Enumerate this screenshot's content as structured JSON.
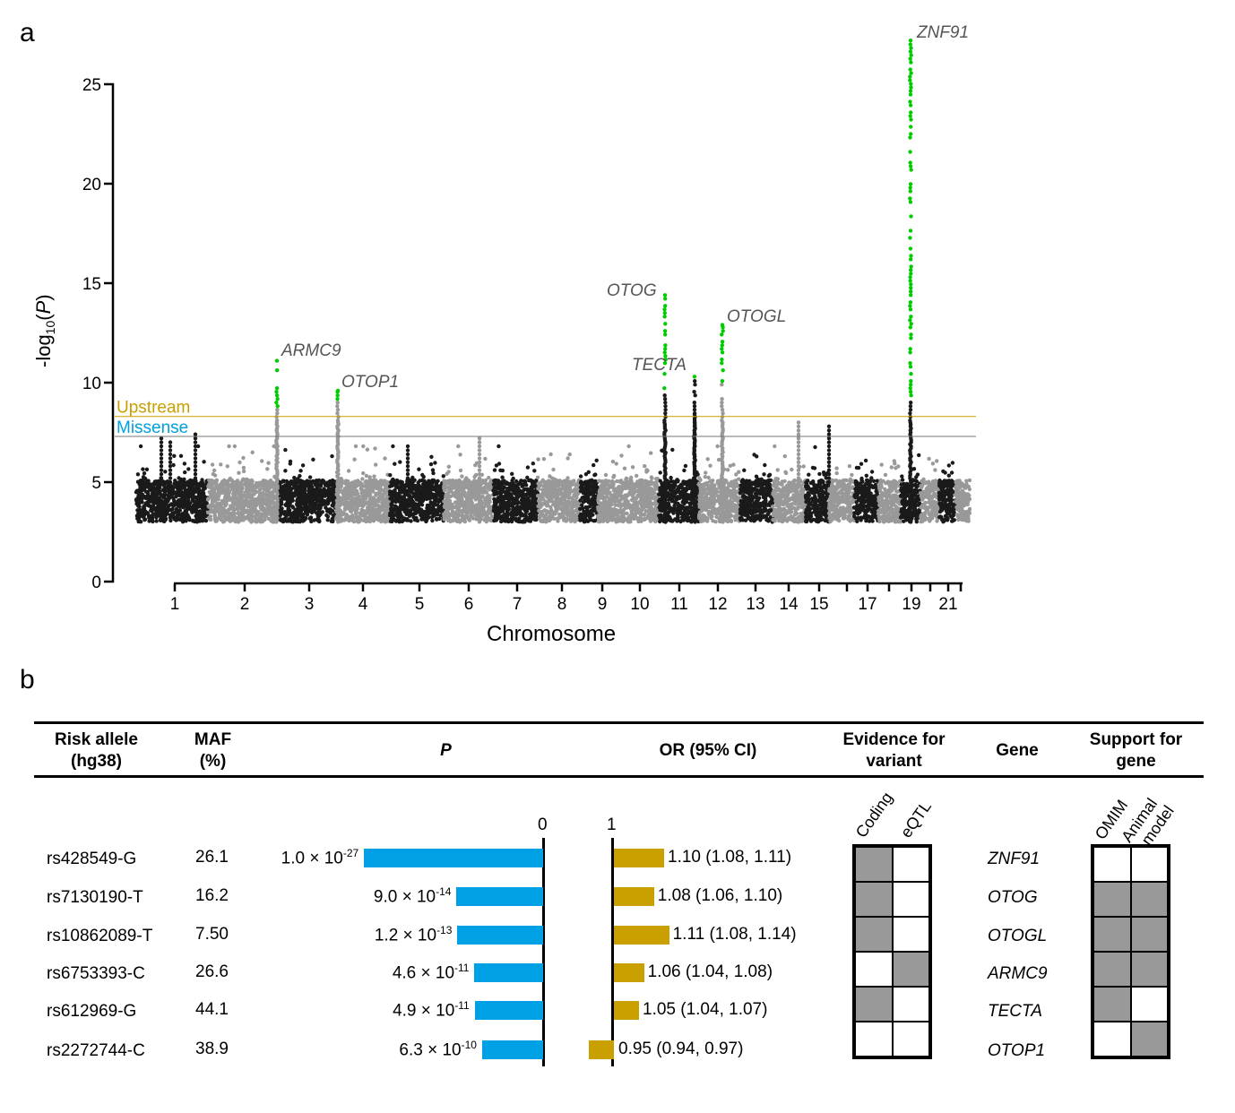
{
  "panel_a": {
    "label": "a"
  },
  "panel_b": {
    "label": "b"
  },
  "chart_data": {
    "type": "scatter",
    "subtype": "manhattan",
    "xlabel": "Chromosome",
    "ylabel": "-log10(P)",
    "ylabel_parts": {
      "pre": "-log",
      "sub": "10",
      "post": "(",
      "italic": "P",
      "close": ")"
    },
    "ylim": [
      0,
      25
    ],
    "yticks": [
      "0",
      "5",
      "10",
      "15",
      "20",
      "25"
    ],
    "xticks": [
      "1",
      "2",
      "3",
      "4",
      "5",
      "6",
      "7",
      "8",
      "9",
      "10",
      "11",
      "12",
      "13",
      "14",
      "15",
      "17",
      "19",
      "21"
    ],
    "colors": {
      "odd": "#1a1a1a",
      "even": "#999999",
      "significant": "#00cc00"
    },
    "thresholds": [
      {
        "name": "Upstream",
        "value": 8.3,
        "color": "#c9a000"
      },
      {
        "name": "Missense",
        "value": 7.3,
        "color": "#00a0e0"
      }
    ],
    "peaks": [
      {
        "gene": "ARMC9",
        "chromosome": 2,
        "max": 11.1
      },
      {
        "gene": "OTOP1",
        "chromosome": 4,
        "max": 9.6
      },
      {
        "gene": "OTOG",
        "chromosome": 11,
        "max": 14.4
      },
      {
        "gene": "TECTA",
        "chromosome": 11,
        "max": 10.3
      },
      {
        "gene": "OTOGL",
        "chromosome": 12,
        "max": 12.9
      },
      {
        "gene": "ZNF91",
        "chromosome": 19,
        "max": 27.2
      }
    ]
  },
  "table": {
    "headers": {
      "allele": "Risk allele",
      "allele2": "(hg38)",
      "maf": "MAF",
      "maf2": "(%)",
      "p": "P",
      "or": "OR (95% CI)",
      "ev": "Evidence for",
      "ev2": "variant",
      "gene": "Gene",
      "sup": "Support for",
      "sup2": "gene"
    },
    "axis": {
      "p_zero": "0",
      "or_one": "1"
    },
    "evidence_cols": [
      "Coding",
      "eQTL"
    ],
    "support_cols": [
      "OMIM",
      "Animal",
      "model"
    ],
    "rows": [
      {
        "allele": "rs428549-G",
        "maf": "26.1",
        "p_mant": "1.0 × 10",
        "p_exp": "-27",
        "neglogp": 27,
        "or": 1.1,
        "or_text": "1.10 (1.08, 1.11)",
        "gene": "ZNF91",
        "coding": true,
        "eqtl": false,
        "omim": false,
        "animal": false
      },
      {
        "allele": "rs7130190-T",
        "maf": "16.2",
        "p_mant": "9.0 × 10",
        "p_exp": "-14",
        "neglogp": 13.05,
        "or": 1.08,
        "or_text": "1.08 (1.06, 1.10)",
        "gene": "OTOG",
        "coding": true,
        "eqtl": false,
        "omim": true,
        "animal": true
      },
      {
        "allele": "rs10862089-T",
        "maf": "7.50",
        "p_mant": "1.2 × 10",
        "p_exp": "-13",
        "neglogp": 12.92,
        "or": 1.11,
        "or_text": "1.11 (1.08, 1.14)",
        "gene": "OTOGL",
        "coding": true,
        "eqtl": false,
        "omim": true,
        "animal": true
      },
      {
        "allele": "rs6753393-C",
        "maf": "26.6",
        "p_mant": "4.6 × 10",
        "p_exp": "-11",
        "neglogp": 10.34,
        "or": 1.06,
        "or_text": "1.06 (1.04, 1.08)",
        "gene": "ARMC9",
        "coding": false,
        "eqtl": true,
        "omim": true,
        "animal": true
      },
      {
        "allele": "rs612969-G",
        "maf": "44.1",
        "p_mant": "4.9 × 10",
        "p_exp": "-11",
        "neglogp": 10.31,
        "or": 1.05,
        "or_text": "1.05 (1.04, 1.07)",
        "gene": "TECTA",
        "coding": true,
        "eqtl": false,
        "omim": true,
        "animal": false
      },
      {
        "allele": "rs2272744-C",
        "maf": "38.9",
        "p_mant": "6.3 × 10",
        "p_exp": "-10",
        "neglogp": 9.2,
        "or": 0.95,
        "or_text": "0.95 (0.94, 0.97)",
        "gene": "OTOP1",
        "coding": false,
        "eqtl": false,
        "omim": false,
        "animal": true
      }
    ],
    "colors": {
      "p_bar": "#00a0e4",
      "or_bar": "#c9a000",
      "filled": "#999999"
    }
  }
}
